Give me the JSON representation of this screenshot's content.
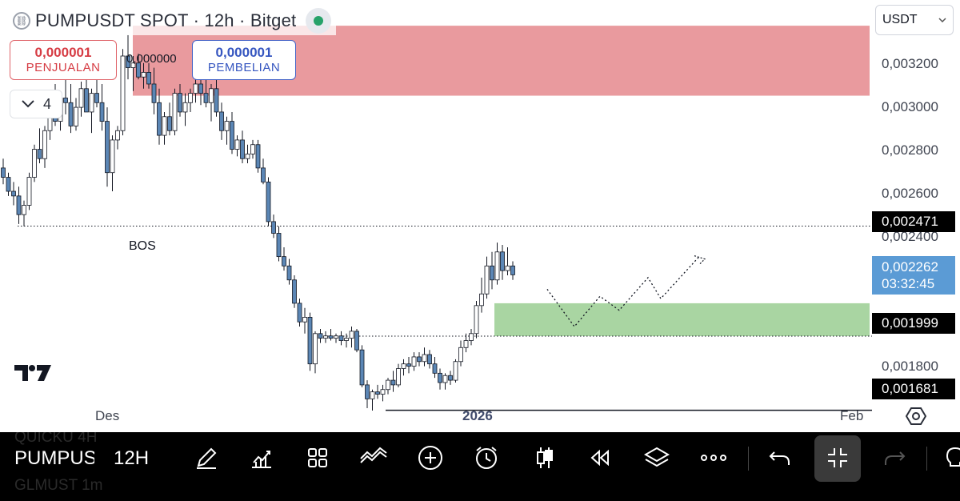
{
  "header": {
    "title": "PUMPUSDT SPOT · 12h · Bitget",
    "logo_icon": "link-icon",
    "status_color": "#26a269"
  },
  "trade": {
    "sell_price": "0,000001",
    "sell_label": "PENJUALAN",
    "spread": "0,000000",
    "buy_price": "0,000001",
    "buy_label": "PEMBELIAN",
    "indicator_count": "4"
  },
  "currency": {
    "selected": "USDT"
  },
  "price_axis": {
    "labels": [
      "0,003200",
      "0,003000",
      "0,002800",
      "0,002600",
      "0,002400",
      "0,001800"
    ],
    "tag_high_line": "0,002471",
    "last_price": "0,002262",
    "countdown": "03:32:45",
    "tag_zone": "0,001999",
    "tag_low": "0,001681"
  },
  "annotations": {
    "bos": "BOS"
  },
  "time_axis": {
    "dec": "Des",
    "year": "2026",
    "feb": "Feb"
  },
  "toolbar": {
    "symbol": "PUMPUSDT",
    "interval": "12H",
    "ghost_top": "QUICKU      4H",
    "ghost_bottom": "GLMUST      1m"
  },
  "colors": {
    "up": "#ffffff",
    "down": "#5b86b5",
    "supply_zone": "#e99a9e",
    "demand_zone": "#a9d5a2",
    "last_price_tag": "#5b9bd5"
  },
  "chart_data": {
    "type": "candlestick",
    "series": "PUMPUSDT",
    "ylim": [
      0.00162,
      0.00335
    ],
    "candles": [
      [
        0.00272,
        0.00276,
        0.00265,
        0.00268
      ],
      [
        0.00268,
        0.0027,
        0.0026,
        0.00262
      ],
      [
        0.00262,
        0.00266,
        0.00256,
        0.0026
      ],
      [
        0.0026,
        0.00264,
        0.00248,
        0.00252
      ],
      [
        0.00252,
        0.00258,
        0.00247,
        0.00256
      ],
      [
        0.00256,
        0.0027,
        0.00254,
        0.00268
      ],
      [
        0.00268,
        0.00282,
        0.00266,
        0.0028
      ],
      [
        0.0028,
        0.00289,
        0.00274,
        0.00276
      ],
      [
        0.00276,
        0.0029,
        0.00272,
        0.00288
      ],
      [
        0.00288,
        0.003,
        0.00284,
        0.00298
      ],
      [
        0.00298,
        0.00308,
        0.0029,
        0.00292
      ],
      [
        0.00292,
        0.00305,
        0.00288,
        0.00302
      ],
      [
        0.00302,
        0.00312,
        0.00295,
        0.003
      ],
      [
        0.003,
        0.00308,
        0.00287,
        0.0029
      ],
      [
        0.0029,
        0.00302,
        0.00288,
        0.00298
      ],
      [
        0.00298,
        0.00309,
        0.00294,
        0.00306
      ],
      [
        0.00306,
        0.0031,
        0.00296,
        0.00296
      ],
      [
        0.00296,
        0.00306,
        0.00287,
        0.00304
      ],
      [
        0.00304,
        0.00312,
        0.00298,
        0.003
      ],
      [
        0.003,
        0.00308,
        0.00288,
        0.00292
      ],
      [
        0.00292,
        0.00298,
        0.00264,
        0.0027
      ],
      [
        0.0027,
        0.00286,
        0.00262,
        0.00284
      ],
      [
        0.00284,
        0.0029,
        0.0028,
        0.00288
      ],
      [
        0.00288,
        0.00323,
        0.00286,
        0.0032
      ],
      [
        0.0032,
        0.00329,
        0.0031,
        0.00315
      ],
      [
        0.00315,
        0.0032,
        0.00305,
        0.00317
      ],
      [
        0.00317,
        0.00321,
        0.0031,
        0.00311
      ],
      [
        0.00311,
        0.00317,
        0.00306,
        0.00313
      ],
      [
        0.00313,
        0.00317,
        0.00306,
        0.00308
      ],
      [
        0.00308,
        0.00315,
        0.00295,
        0.003
      ],
      [
        0.003,
        0.00306,
        0.00282,
        0.00286
      ],
      [
        0.00286,
        0.00296,
        0.00282,
        0.00294
      ],
      [
        0.00294,
        0.003,
        0.00286,
        0.00288
      ],
      [
        0.00288,
        0.00306,
        0.00286,
        0.00304
      ],
      [
        0.00304,
        0.00308,
        0.00294,
        0.00296
      ],
      [
        0.00296,
        0.00304,
        0.0029,
        0.003
      ],
      [
        0.003,
        0.00306,
        0.00296,
        0.00304
      ],
      [
        0.00304,
        0.00312,
        0.003,
        0.00308
      ],
      [
        0.00308,
        0.00314,
        0.00299,
        0.00304
      ],
      [
        0.00304,
        0.00311,
        0.00298,
        0.003
      ],
      [
        0.003,
        0.00308,
        0.00292,
        0.00306
      ],
      [
        0.00306,
        0.0031,
        0.00294,
        0.00296
      ],
      [
        0.00296,
        0.003,
        0.00284,
        0.00288
      ],
      [
        0.00288,
        0.00294,
        0.00282,
        0.00292
      ],
      [
        0.00292,
        0.00296,
        0.00278,
        0.0028
      ],
      [
        0.0028,
        0.00286,
        0.00277,
        0.00284
      ],
      [
        0.00284,
        0.00288,
        0.00274,
        0.00276
      ],
      [
        0.00276,
        0.00282,
        0.00274,
        0.00278
      ],
      [
        0.00278,
        0.00284,
        0.00276,
        0.00282
      ],
      [
        0.00282,
        0.00284,
        0.0027,
        0.00272
      ],
      [
        0.00272,
        0.00276,
        0.00265,
        0.00266
      ],
      [
        0.00266,
        0.00268,
        0.00247,
        0.00249
      ],
      [
        0.00249,
        0.00252,
        0.00242,
        0.00244
      ],
      [
        0.00244,
        0.00247,
        0.00232,
        0.00234
      ],
      [
        0.00234,
        0.00238,
        0.00228,
        0.0023
      ],
      [
        0.0023,
        0.00233,
        0.00222,
        0.00224
      ],
      [
        0.00224,
        0.00226,
        0.00212,
        0.00214
      ],
      [
        0.00214,
        0.00216,
        0.00204,
        0.00206
      ],
      [
        0.00206,
        0.00212,
        0.00201,
        0.00208
      ],
      [
        0.00208,
        0.0021,
        0.00185,
        0.00188
      ],
      [
        0.00188,
        0.00202,
        0.00184,
        0.00201
      ],
      [
        0.00201,
        0.00203,
        0.00197,
        0.00199
      ],
      [
        0.00199,
        0.00202,
        0.00197,
        0.002
      ],
      [
        0.002,
        0.00203,
        0.00198,
        0.00199
      ],
      [
        0.00199,
        0.00201,
        0.00197,
        0.002
      ],
      [
        0.002,
        0.00202,
        0.00196,
        0.00198
      ],
      [
        0.00198,
        0.00201,
        0.00195,
        0.00199
      ],
      [
        0.00199,
        0.00204,
        0.00195,
        0.00202
      ],
      [
        0.00202,
        0.00203,
        0.00193,
        0.00194
      ],
      [
        0.00194,
        0.00196,
        0.00178,
        0.00179
      ],
      [
        0.00179,
        0.00181,
        0.00169,
        0.00173
      ],
      [
        0.00173,
        0.00177,
        0.00168,
        0.00176
      ],
      [
        0.00176,
        0.00179,
        0.00173,
        0.00175
      ],
      [
        0.00175,
        0.00179,
        0.00172,
        0.00177
      ],
      [
        0.00177,
        0.00182,
        0.00175,
        0.00181
      ],
      [
        0.00181,
        0.00185,
        0.00176,
        0.00179
      ],
      [
        0.00179,
        0.00188,
        0.00178,
        0.00186
      ],
      [
        0.00186,
        0.0019,
        0.00183,
        0.00188
      ],
      [
        0.00188,
        0.00191,
        0.00184,
        0.00187
      ],
      [
        0.00187,
        0.00193,
        0.00185,
        0.00191
      ],
      [
        0.00191,
        0.00193,
        0.00187,
        0.00189
      ],
      [
        0.00189,
        0.00195,
        0.00187,
        0.00192
      ],
      [
        0.00192,
        0.00194,
        0.00186,
        0.00188
      ],
      [
        0.00188,
        0.00191,
        0.00182,
        0.00184
      ],
      [
        0.00184,
        0.00186,
        0.00177,
        0.0018
      ],
      [
        0.0018,
        0.00184,
        0.00177,
        0.00183
      ],
      [
        0.00183,
        0.00185,
        0.00179,
        0.00181
      ],
      [
        0.00181,
        0.0019,
        0.0018,
        0.00189
      ],
      [
        0.00189,
        0.00198,
        0.00187,
        0.00195
      ],
      [
        0.00195,
        0.00201,
        0.00193,
        0.00198
      ],
      [
        0.00198,
        0.00203,
        0.00196,
        0.00201
      ],
      [
        0.00201,
        0.00215,
        0.00199,
        0.00213
      ],
      [
        0.00213,
        0.00225,
        0.0021,
        0.00218
      ],
      [
        0.00218,
        0.00234,
        0.00216,
        0.0023
      ],
      [
        0.0023,
        0.00236,
        0.0022,
        0.00224
      ],
      [
        0.00224,
        0.0024,
        0.00222,
        0.00236
      ],
      [
        0.00236,
        0.00239,
        0.00224,
        0.00228
      ],
      [
        0.00228,
        0.00238,
        0.00226,
        0.0023
      ],
      [
        0.0023,
        0.00232,
        0.00224,
        0.002262
      ]
    ],
    "zones": [
      {
        "type": "supply",
        "from": 0.00303,
        "to": 0.00333
      },
      {
        "type": "demand",
        "from": 0.001999,
        "to": 0.00214
      }
    ],
    "levels": [
      {
        "price": 0.002471,
        "style": "dotted",
        "label": "0,002471"
      },
      {
        "price": 0.001999,
        "style": "dotted",
        "label": "0,001999"
      },
      {
        "price": 0.001681,
        "style": "solid",
        "label": "0,001681"
      }
    ],
    "projection": [
      0.00234,
      0.0022,
      0.00204,
      0.00217,
      0.00211,
      0.00225,
      0.00216,
      0.00234,
      0.0026
    ]
  }
}
